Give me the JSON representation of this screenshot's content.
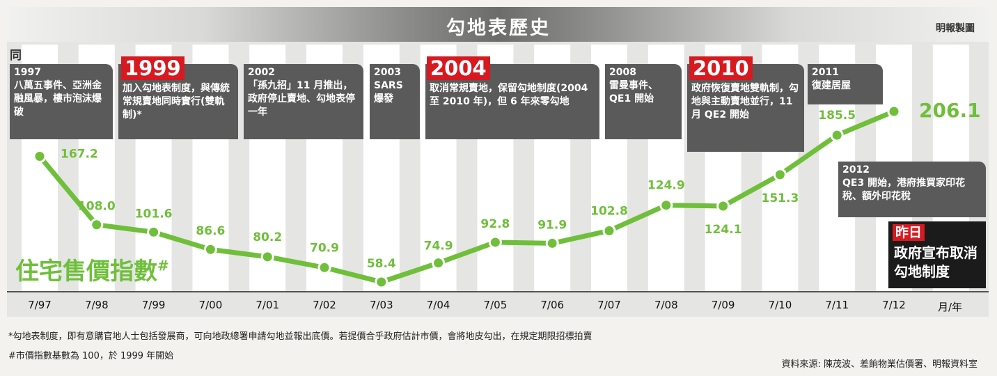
{
  "title": "勾地表歷史",
  "credit": "明報製圖",
  "events_label": "同年事件",
  "chart_data": {
    "type": "line",
    "categories": [
      "7/97",
      "7/98",
      "7/99",
      "7/00",
      "7/01",
      "7/02",
      "7/03",
      "7/04",
      "7/05",
      "7/06",
      "7/07",
      "7/08",
      "7/09",
      "7/10",
      "7/11",
      "7/12"
    ],
    "values": [
      167.2,
      108.0,
      101.6,
      86.6,
      80.2,
      70.9,
      58.4,
      74.9,
      92.8,
      91.9,
      102.8,
      124.9,
      124.1,
      151.3,
      185.5,
      206.1
    ],
    "value_labels": [
      "167.2",
      "108.0",
      "101.6",
      "86.6",
      "80.2",
      "70.9",
      "58.4",
      "74.9",
      "92.8",
      "91.9",
      "102.8",
      "124.9",
      "124.1",
      "151.3",
      "185.5",
      "206.1"
    ],
    "x_unit": "月/年",
    "series_label": "住宅售價指數",
    "series_label_mark": "#",
    "line_color": "#6fbf3b"
  },
  "events": [
    {
      "year": "1997",
      "text": "八萬五事件、亞洲金融風暴，樓市泡沫爆破",
      "highlight": false
    },
    {
      "year": "1999",
      "text": "加入勾地表制度，與傳統常規賣地同時實行(雙軌制)*",
      "highlight": true
    },
    {
      "year": "2002",
      "text": "「孫九招」11 月推出，政府停止賣地、勾地表停一年",
      "highlight": false
    },
    {
      "year": "2003",
      "text": "SARS 爆發",
      "highlight": false
    },
    {
      "year": "2004",
      "text": "取消常規賣地，保留勾地制度(2004 至 2010 年)，但 6 年來零勾地",
      "highlight": true
    },
    {
      "year": "2008",
      "text": "雷曼事件、QE1 開始",
      "highlight": false
    },
    {
      "year": "2010",
      "text": "政府恢復賣地雙軌制，勾地與主動賣地並行，11 月 QE2 開始",
      "highlight": true
    },
    {
      "year": "2011",
      "text": "復建居屋",
      "highlight": false
    },
    {
      "year": "2012",
      "text": "QE3 開始，港府推買家印花稅、額外印花稅",
      "highlight": false
    }
  ],
  "news": {
    "badge": "昨日",
    "text": "政府宣布取消勾地制度"
  },
  "footnotes": {
    "note1": "*勾地表制度，即有意購官地人士包括發展商，可向地政總署申請勾地並報出底價。若提價合乎政府估計市價，會將地皮勾出，在規定期限招標拍賣",
    "note2": "#市價指數基數為 100，於 1999 年開始",
    "source": "資料來源: 陳茂波、差餉物業估價署、明報資料室"
  },
  "colors": {
    "accent": "#d71920",
    "line": "#6fbf3b",
    "box": "#5a5a5a"
  }
}
